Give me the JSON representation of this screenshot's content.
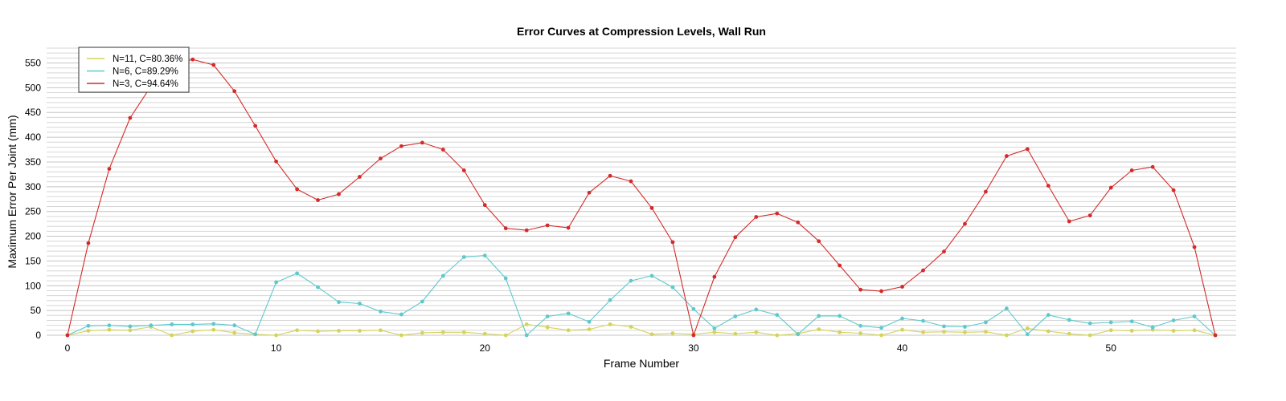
{
  "chart_data": {
    "type": "line",
    "title": "Error Curves at Compression Levels, Wall Run",
    "xlabel": "Frame Number",
    "ylabel": "Maximum Error Per Joint (mm)",
    "xlim": [
      -1,
      56
    ],
    "ylim": [
      0,
      580
    ],
    "xticks": [
      0,
      10,
      20,
      30,
      40,
      50
    ],
    "yticks": [
      0,
      50,
      100,
      150,
      200,
      250,
      300,
      350,
      400,
      450,
      500,
      550
    ],
    "minor_grid_step": 10,
    "grid": true,
    "legend_position": "top-left",
    "x": [
      0,
      1,
      2,
      3,
      4,
      5,
      6,
      7,
      8,
      9,
      10,
      11,
      12,
      13,
      14,
      15,
      16,
      17,
      18,
      19,
      20,
      21,
      22,
      23,
      24,
      25,
      26,
      27,
      28,
      29,
      30,
      31,
      32,
      33,
      34,
      35,
      36,
      37,
      38,
      39,
      40,
      41,
      42,
      43,
      44,
      45,
      46,
      47,
      48,
      49,
      50,
      51,
      52,
      53,
      54,
      55
    ],
    "series": [
      {
        "name": "N=11, C=80.36%",
        "color": "#d4d35a",
        "values": [
          0,
          9,
          11,
          10,
          17,
          0,
          8,
          11,
          5,
          2,
          0,
          10,
          8,
          9,
          9,
          10,
          0,
          5,
          6,
          6,
          3,
          0,
          22,
          16,
          10,
          12,
          22,
          17,
          2,
          4,
          2,
          6,
          3,
          6,
          0,
          3,
          12,
          6,
          4,
          0,
          11,
          6,
          7,
          6,
          7,
          0,
          14,
          8,
          3,
          0,
          10,
          9,
          11,
          9,
          10,
          0
        ]
      },
      {
        "name": "N=6, C=89.29%",
        "color": "#5ec9cc",
        "values": [
          0,
          19,
          20,
          18,
          20,
          22,
          22,
          23,
          20,
          2,
          107,
          125,
          97,
          67,
          64,
          48,
          42,
          68,
          120,
          158,
          161,
          115,
          0,
          38,
          44,
          27,
          71,
          110,
          120,
          97,
          53,
          14,
          38,
          52,
          41,
          2,
          39,
          39,
          19,
          15,
          34,
          29,
          18,
          17,
          26,
          54,
          2,
          41,
          31,
          24,
          26,
          28,
          16,
          30,
          38,
          0
        ]
      },
      {
        "name": "N=3, C=94.64%",
        "color": "#d42a2a",
        "values": [
          0,
          186,
          336,
          439,
          503,
          548,
          557,
          546,
          493,
          423,
          351,
          295,
          273,
          285,
          320,
          357,
          382,
          389,
          375,
          333,
          263,
          216,
          212,
          222,
          217,
          288,
          322,
          311,
          257,
          188,
          0,
          118,
          198,
          239,
          246,
          228,
          190,
          141,
          92,
          89,
          98,
          131,
          169,
          225,
          290,
          362,
          376,
          302,
          230,
          242,
          298,
          333,
          340,
          293,
          178,
          0
        ]
      }
    ]
  }
}
